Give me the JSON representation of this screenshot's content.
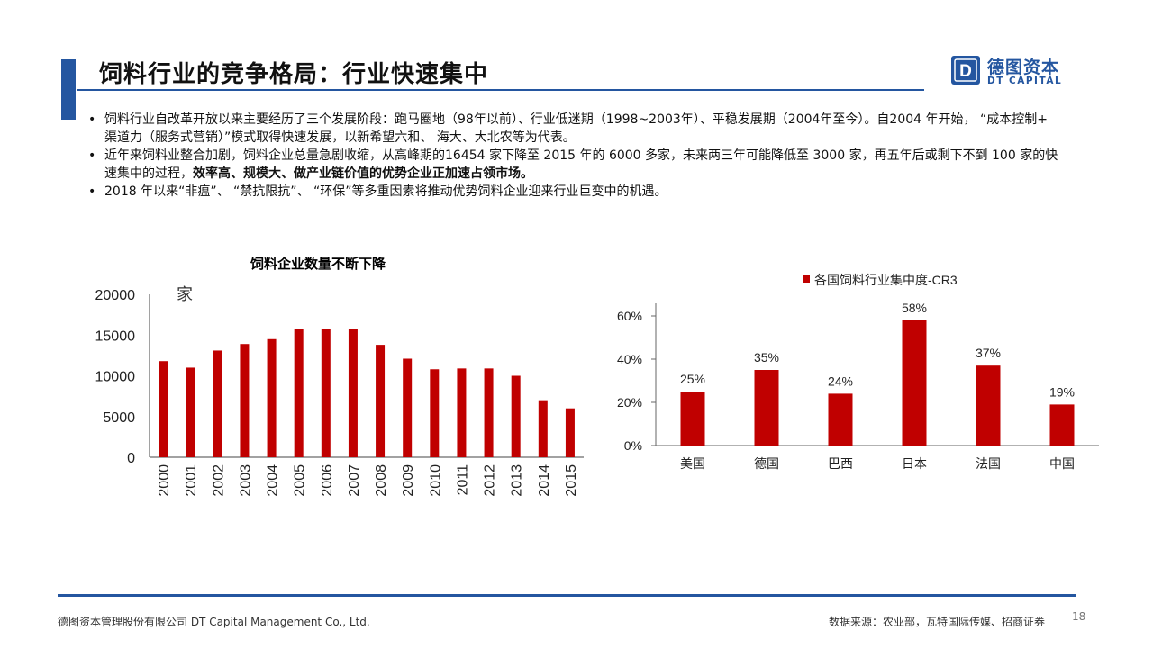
{
  "header": {
    "title": "饲料行业的竞争格局：行业快速集中",
    "logo_cn": "德图资本",
    "logo_en": "DT CAPITAL",
    "logo_letter": "D"
  },
  "bullets": {
    "b1": "饲料行业自改革开放以来主要经历了三个发展阶段：跑马圈地（98年以前）、行业低迷期（1998~2003年）、平稳发展期（2004年至今）。自2004 年开始， “成本控制+ 渠道力（服务式营销）”模式取得快速发展，以新希望六和、 海大、大北农等为代表。",
    "b2_plain": "近年来饲料业整合加剧，饲料企业总量急剧收缩，从高峰期的16454 家下降至 2015 年的 6000 多家，未来两三年可能降低至 3000 家，再五年后或剩下不到 100 家的快速集中的过程，",
    "b2_bold": "效率高、规模大、做产业链价值的优势企业正加速占领市场。",
    "b3": "2018 年以来“非瘟”、 “禁抗限抗”、 “环保”等多重因素将推动优势饲料企业迎来行业巨变中的机遇。"
  },
  "chart_data": [
    {
      "type": "bar",
      "title": "饲料企业数量不断下降",
      "unit_label": "家",
      "categories": [
        "2000",
        "2001",
        "2002",
        "2003",
        "2004",
        "2005",
        "2006",
        "2007",
        "2008",
        "2009",
        "2010",
        "2011",
        "2012",
        "2013",
        "2014",
        "2015"
      ],
      "values": [
        11800,
        11000,
        13100,
        13900,
        14500,
        15800,
        15800,
        15700,
        13800,
        12100,
        10800,
        10900,
        10900,
        10000,
        7000,
        6000
      ],
      "ylim": [
        0,
        20000
      ],
      "yticks": [
        "0",
        "5000",
        "10000",
        "15000",
        "20000"
      ],
      "bar_color": "#c00000",
      "grid": false
    },
    {
      "type": "bar",
      "legend": "各国饲料行业集中度-CR3",
      "legend_placement": "top",
      "categories": [
        "美国",
        "德国",
        "巴西",
        "日本",
        "法国",
        "中国"
      ],
      "values": [
        25,
        35,
        24,
        58,
        37,
        19
      ],
      "value_labels": [
        "25%",
        "35%",
        "24%",
        "58%",
        "37%",
        "19%"
      ],
      "ylim": [
        0,
        60
      ],
      "yticks": [
        "0%",
        "20%",
        "40%",
        "60%"
      ],
      "bar_color": "#c00000",
      "grid": false
    }
  ],
  "footer": {
    "company": "德图资本管理股份有限公司 DT Capital Management Co., Ltd.",
    "source": "数据来源：农业部，瓦特国际传媒、招商证券",
    "page": "18"
  }
}
